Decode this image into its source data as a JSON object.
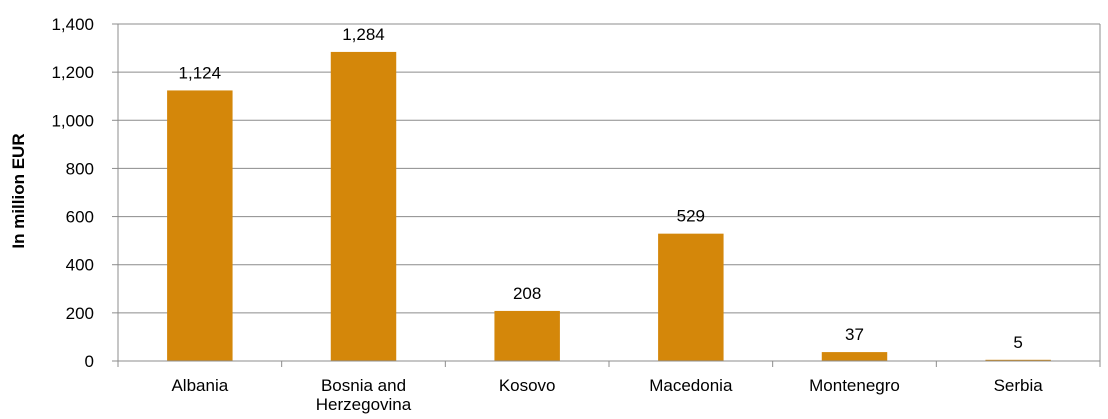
{
  "chart_data": {
    "type": "bar",
    "categories": [
      "Albania",
      "Bosnia and\nHerzegovina",
      "Kosovo",
      "Macedonia",
      "Montenegro",
      "Serbia"
    ],
    "values": [
      1124,
      1284,
      208,
      529,
      37,
      5
    ],
    "value_labels": [
      "1,124",
      "1,284",
      "208",
      "529",
      "37",
      "5"
    ],
    "ylabel": "In million EUR",
    "ylim": [
      0,
      1400
    ],
    "yticks": [
      0,
      200,
      400,
      600,
      800,
      1000,
      1200,
      1400
    ],
    "ytick_labels": [
      "0",
      "200",
      "400",
      "600",
      "800",
      "1,000",
      "1,200",
      "1,400"
    ],
    "grid": true,
    "legend": "none",
    "bar_color": "#D4870A",
    "grid_color": "#8C8C8C"
  }
}
